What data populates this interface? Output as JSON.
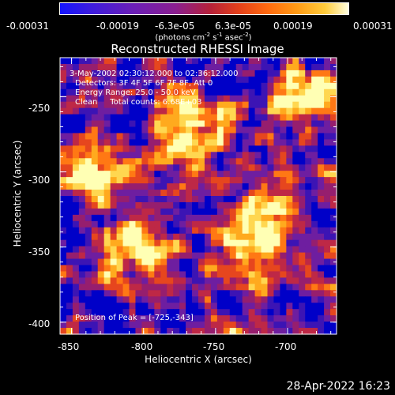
{
  "colorbar": {
    "tick_labels": [
      "-0.00031",
      "-0.00019",
      "-6.3e-05",
      "6.3e-05",
      "0.00019",
      "0.00031"
    ],
    "units_main": "(photons cm",
    "units_exp1": "-2",
    "units_mid": " s",
    "units_exp2": "-1",
    "units_end": " asec",
    "units_exp3": "-2",
    "units_close": ")"
  },
  "footer": {
    "timestamp": "28-Apr-2022 16:23"
  },
  "chart_data": {
    "type": "heatmap",
    "title": "Reconstructed RHESSI Image",
    "xlabel": "Heliocentric X (arcsec)",
    "ylabel": "Heliocentric Y (arcsec)",
    "xlim": [
      -858,
      -666
    ],
    "ylim": [
      -408,
      -224
    ],
    "x_ticks": [
      -850,
      -800,
      -750,
      -700
    ],
    "y_ticks": [
      -250,
      -300,
      -350,
      -400
    ],
    "x_tick_labels": [
      "-850",
      "-800",
      "-750",
      "-700"
    ],
    "y_tick_labels": [
      "-250",
      "-300",
      "-350",
      "-400"
    ],
    "value_range": [
      -0.00031,
      0.00031
    ],
    "peak_position": [
      -725,
      -343
    ],
    "annotations": [
      "3-May-2002 02:30:12.000 to 02:36:12.000",
      "Detectors: 3F 4F 5F 6F 7F 8F, Att 0",
      "Energy Range: 25.0 - 50.0 keV",
      "Clean     Total counts: 6.68E+03",
      "Position of Peak = [-725,-343]"
    ],
    "colormap": [
      "#0000c8",
      "#3c14b4",
      "#6e1ea0",
      "#961e6e",
      "#be2846",
      "#e6461e",
      "#ff7814",
      "#ffaa1e",
      "#ffd750",
      "#ffffb4"
    ]
  }
}
